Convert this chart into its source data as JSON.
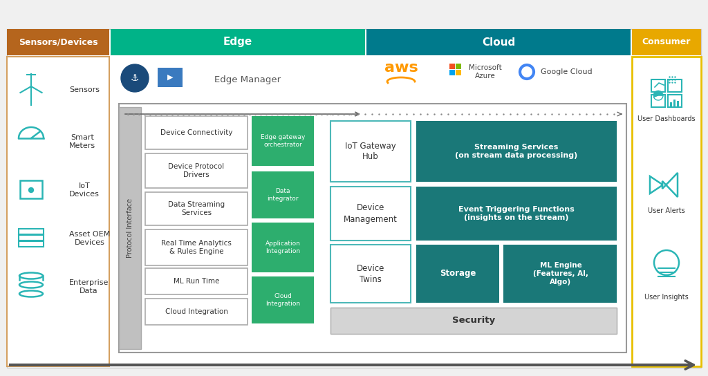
{
  "bg_color": "#f0f0f0",
  "header_colors": {
    "sensors": "#b5651d",
    "edge": "#00b388",
    "cloud": "#007a8c",
    "consumer": "#e8a800"
  },
  "header_labels": {
    "sensors": "Sensors/Devices",
    "edge": "Edge",
    "cloud": "Cloud",
    "consumer": "Consumer"
  },
  "sensors_items": [
    "Sensors",
    "Smart\nMeters",
    "IoT\nDevices",
    "Asset OEM\nDevices",
    "Enterprise\nData"
  ],
  "edge_left_items": [
    "Device Connectivity",
    "Device Protocol\nDrivers",
    "Data Streaming\nServices",
    "Real Time Analytics\n& Rules Engine",
    "ML Run Time",
    "Cloud Integration"
  ],
  "edge_right_items": [
    "Edge gateway\norchestrator",
    "Data\nintegrator",
    "Application\nIntegration",
    "Cloud\nIntegration"
  ],
  "cloud_left_items": [
    "IoT Gateway\nHub",
    "Device\nManagement",
    "Device\nTwins"
  ],
  "cloud_right_top": "Streaming Services\n(on stream data processing)",
  "cloud_right_mid": "Event Triggering Functions\n(insights on the stream)",
  "cloud_right_bot_l": "Storage",
  "cloud_right_bot_r": "ML Engine\n(Features, AI,\nAlgo)",
  "consumer_items": [
    "User Dashboards",
    "User Alerts",
    "User Insights"
  ],
  "teal_color": "#2ab5b5",
  "dark_teal": "#1a7878",
  "green_color": "#2dae6e",
  "aws_orange": "#ff9900",
  "white": "#ffffff",
  "text_dark": "#333333",
  "gray_bar": "#c8c8c8",
  "light_border": "#cccccc"
}
